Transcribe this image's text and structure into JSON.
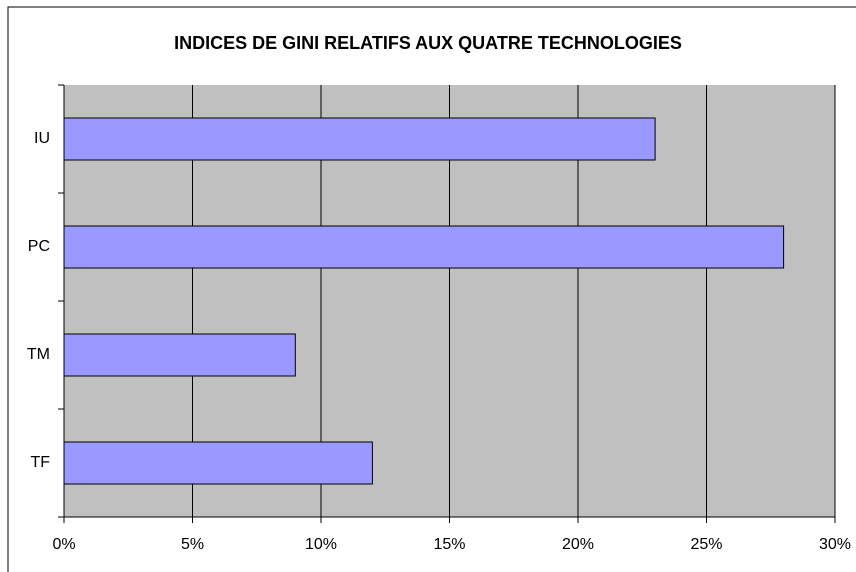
{
  "chart_data": {
    "type": "barh",
    "title": "INDICES DE GINI RELATIFS AUX QUATRE TECHNOLOGIES",
    "categories": [
      "IU",
      "PC",
      "TM",
      "TF"
    ],
    "values": [
      23,
      28,
      9,
      12
    ],
    "color": "#9999ff",
    "xlim": [
      0,
      30
    ],
    "xticks": [
      {
        "value": 0,
        "label": "0%"
      },
      {
        "value": 5,
        "label": "5%"
      },
      {
        "value": 10,
        "label": "10%"
      },
      {
        "value": 15,
        "label": "15%"
      },
      {
        "value": 20,
        "label": "20%"
      },
      {
        "value": 25,
        "label": "25%"
      },
      {
        "value": 30,
        "label": "30%"
      }
    ],
    "grid": true
  }
}
